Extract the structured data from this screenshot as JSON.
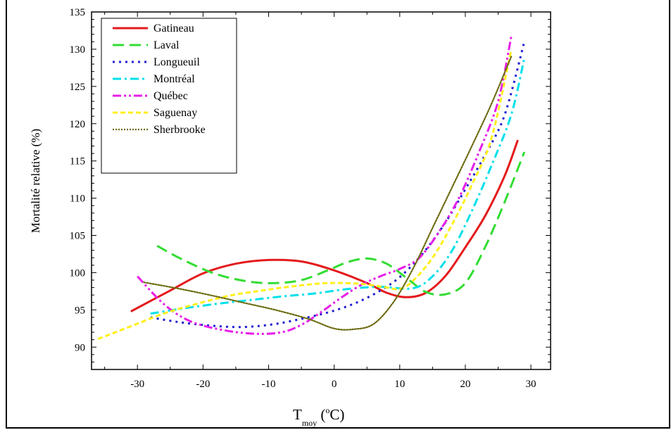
{
  "chart_data": {
    "type": "line",
    "title": "",
    "ylabel": "Mortalité relative (%)",
    "xlabel_main": "T",
    "xlabel_sub": "moy",
    "xlabel_unit_open": " (",
    "xlabel_unit_sup": "o",
    "xlabel_unit_close": "C)",
    "xlim": [
      -37,
      33
    ],
    "ylim": [
      87,
      135
    ],
    "xticks": [
      -30,
      -20,
      -10,
      0,
      10,
      20,
      30
    ],
    "yticks": [
      90,
      95,
      100,
      105,
      110,
      115,
      120,
      125,
      130,
      135
    ],
    "legend_position": "top-left",
    "series": [
      {
        "name": "Gatineau",
        "color": "#e41a1c",
        "dash": "solid",
        "points": [
          [
            -31,
            94.8
          ],
          [
            -25,
            97.6
          ],
          [
            -20,
            99.9
          ],
          [
            -15,
            101.2
          ],
          [
            -10,
            101.7
          ],
          [
            -5,
            101.5
          ],
          [
            0,
            100.3
          ],
          [
            5,
            98.6
          ],
          [
            8,
            97.3
          ],
          [
            11,
            96.7
          ],
          [
            14,
            97.3
          ],
          [
            17,
            99.6
          ],
          [
            20,
            103.4
          ],
          [
            23,
            107.6
          ],
          [
            26,
            113.0
          ],
          [
            28,
            117.8
          ]
        ]
      },
      {
        "name": "Laval",
        "color": "#33dd33",
        "dash": "long-dash",
        "points": [
          [
            -27,
            103.6
          ],
          [
            -23,
            101.7
          ],
          [
            -18,
            99.8
          ],
          [
            -13,
            98.8
          ],
          [
            -9,
            98.6
          ],
          [
            -5,
            99.0
          ],
          [
            -1,
            100.3
          ],
          [
            2,
            101.4
          ],
          [
            5,
            101.9
          ],
          [
            8,
            101.2
          ],
          [
            11,
            99.3
          ],
          [
            14,
            97.4
          ],
          [
            17,
            97.1
          ],
          [
            20,
            98.6
          ],
          [
            23,
            103.4
          ],
          [
            26,
            109.5
          ],
          [
            29,
            116.2
          ]
        ]
      },
      {
        "name": "Longueuil",
        "color": "#1f1fd0",
        "dash": "dot",
        "points": [
          [
            -28,
            94.0
          ],
          [
            -24,
            93.4
          ],
          [
            -19,
            92.9
          ],
          [
            -14,
            92.7
          ],
          [
            -9,
            93.1
          ],
          [
            -4,
            94.0
          ],
          [
            0,
            94.9
          ],
          [
            4,
            96.2
          ],
          [
            8,
            98.1
          ],
          [
            11,
            100.2
          ],
          [
            14,
            103.1
          ],
          [
            17,
            106.8
          ],
          [
            20,
            111.2
          ],
          [
            23,
            115.8
          ],
          [
            26,
            121.2
          ],
          [
            29,
            131.0
          ]
        ]
      },
      {
        "name": "Montréal",
        "color": "#00e0ea",
        "dash": "dash-dot",
        "points": [
          [
            -28,
            94.5
          ],
          [
            -23,
            95.2
          ],
          [
            -18,
            95.8
          ],
          [
            -13,
            96.3
          ],
          [
            -8,
            96.8
          ],
          [
            -3,
            97.2
          ],
          [
            2,
            97.8
          ],
          [
            7,
            98.1
          ],
          [
            12,
            97.9
          ],
          [
            15,
            99.5
          ],
          [
            18,
            103.0
          ],
          [
            21,
            108.3
          ],
          [
            24,
            114.4
          ],
          [
            27,
            121.2
          ],
          [
            29,
            128.8
          ]
        ]
      },
      {
        "name": "Québec",
        "color": "#e81ee8",
        "dash": "dash-dot-dot",
        "points": [
          [
            -30,
            99.5
          ],
          [
            -26,
            95.8
          ],
          [
            -22,
            93.5
          ],
          [
            -17,
            92.3
          ],
          [
            -12,
            91.8
          ],
          [
            -8,
            92.0
          ],
          [
            -5,
            93.0
          ],
          [
            -2,
            94.7
          ],
          [
            1,
            96.6
          ],
          [
            4,
            98.3
          ],
          [
            7,
            99.5
          ],
          [
            10,
            100.5
          ],
          [
            13,
            102.0
          ],
          [
            16,
            105.5
          ],
          [
            19,
            110.0
          ],
          [
            22,
            116.0
          ],
          [
            25,
            123.0
          ],
          [
            27,
            131.7
          ]
        ]
      },
      {
        "name": "Saguenay",
        "color": "#ffef1a",
        "dash": "dash",
        "points": [
          [
            -36,
            91.1
          ],
          [
            -31,
            92.8
          ],
          [
            -26,
            94.5
          ],
          [
            -21,
            95.8
          ],
          [
            -16,
            96.9
          ],
          [
            -11,
            97.6
          ],
          [
            -6,
            98.2
          ],
          [
            -1,
            98.6
          ],
          [
            4,
            98.5
          ],
          [
            8,
            98.0
          ],
          [
            10,
            97.8
          ],
          [
            12,
            98.9
          ],
          [
            15,
            102.0
          ],
          [
            18,
            106.5
          ],
          [
            21,
            111.8
          ],
          [
            24,
            118.1
          ],
          [
            27,
            129.9
          ]
        ]
      },
      {
        "name": "Sherbrooke",
        "color": "#6b6b10",
        "dash": "fine-dot",
        "points": [
          [
            -29,
            98.7
          ],
          [
            -24,
            97.9
          ],
          [
            -19,
            97.0
          ],
          [
            -14,
            96.0
          ],
          [
            -9,
            95.0
          ],
          [
            -4,
            93.8
          ],
          [
            0,
            92.5
          ],
          [
            3,
            92.4
          ],
          [
            6,
            93.1
          ],
          [
            9,
            96.0
          ],
          [
            12,
            100.5
          ],
          [
            15,
            106.0
          ],
          [
            18,
            111.5
          ],
          [
            21,
            117.0
          ],
          [
            24,
            122.7
          ],
          [
            27,
            129.0
          ]
        ]
      }
    ]
  }
}
